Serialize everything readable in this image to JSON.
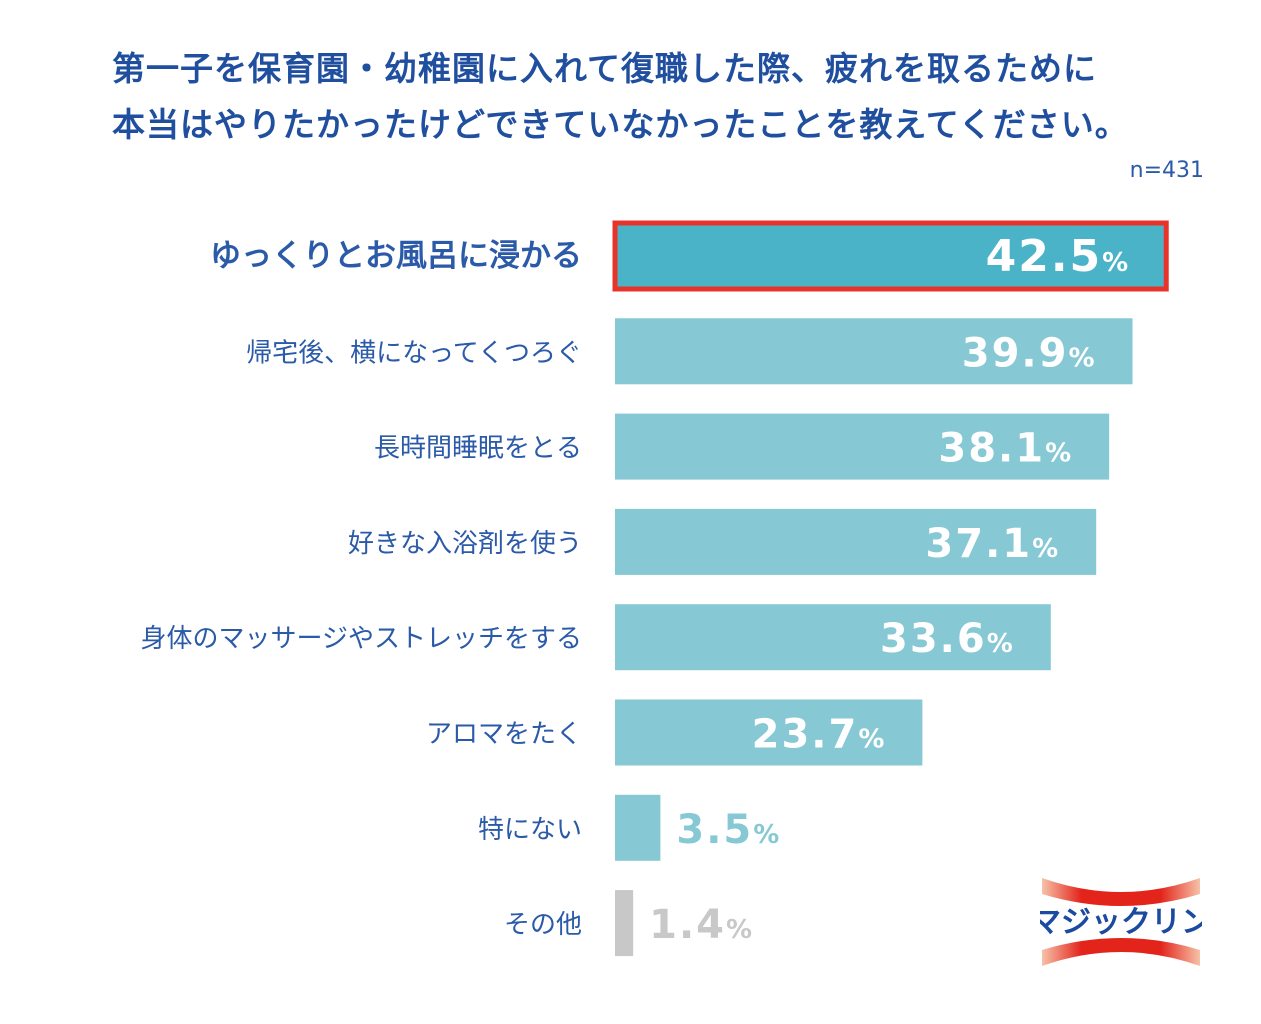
{
  "chart_data": {
    "type": "bar",
    "orientation": "horizontal",
    "title_lines": [
      "第一子を保育園・幼稚園に入れて復職した際、疲れを取るために",
      "本当はやりたかったけどできていなかったことを教えてください。"
    ],
    "sample_size": "n=431",
    "unit": "%",
    "categories": [
      "ゆっくりとお風呂に浸かる",
      "帰宅後、横になってくつろぐ",
      "長時間睡眠をとる",
      "好きな入浴剤を使う",
      "身体のマッサージやストレッチをする",
      "アロマをたく",
      "特にない",
      "その他"
    ],
    "values": [
      42.5,
      39.9,
      38.1,
      37.1,
      33.6,
      23.7,
      3.5,
      1.4
    ],
    "highlight_index": 0,
    "colors": {
      "highlight": "#4bb3c8",
      "highlight_border": "#e8332a",
      "bar": "#86c8d3",
      "other": "#c8c8c8",
      "label": "#2a5aa8",
      "title": "#1f4f9e"
    }
  },
  "logo": {
    "text": "マジックリン"
  }
}
